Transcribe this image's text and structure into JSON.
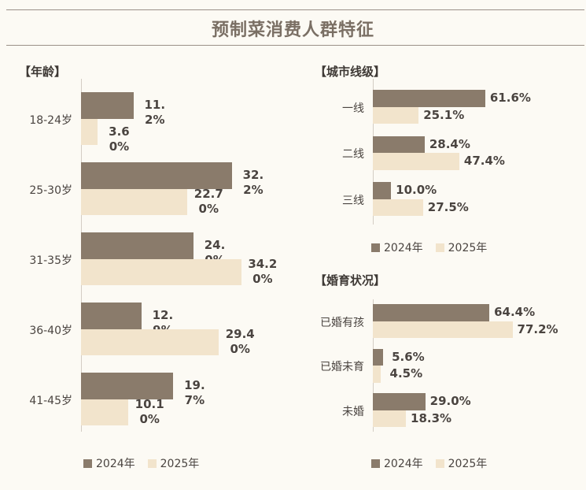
{
  "title": "预制菜消费人群特征",
  "colors": {
    "2024": "#8a7b6b",
    "2025": "#f2e4cc"
  },
  "legend": [
    "2024年",
    "2025年"
  ],
  "chart_data": [
    {
      "type": "bar",
      "orientation": "horizontal",
      "title": "【年龄】",
      "categories": [
        "18-24岁",
        "25-30岁",
        "31-35岁",
        "36-40岁",
        "41-45岁"
      ],
      "series": [
        {
          "name": "2024年",
          "values": [
            11.2,
            32.2,
            24.0,
            12.9,
            19.7
          ],
          "labels": [
            "11.2%",
            "32.2%",
            "24.0%",
            "12.9%",
            "19.7%"
          ]
        },
        {
          "name": "2025年",
          "values": [
            3.6,
            22.7,
            34.2,
            29.4,
            10.1
          ],
          "labels": [
            "3.60%",
            "22.70%",
            "34.20%",
            "29.40%",
            "10.10%"
          ]
        }
      ],
      "legend_placement": "bottom-left",
      "grid": false
    },
    {
      "type": "bar",
      "orientation": "horizontal",
      "title": "【城市线级】",
      "categories": [
        "一线",
        "二线",
        "三线"
      ],
      "series": [
        {
          "name": "2024年",
          "values": [
            61.6,
            28.4,
            10.0
          ],
          "labels": [
            "61.6%",
            "28.4%",
            "10.0%"
          ]
        },
        {
          "name": "2025年",
          "values": [
            25.1,
            47.4,
            27.5
          ],
          "labels": [
            "25.1%",
            "47.4%",
            "27.5%"
          ]
        }
      ],
      "legend_placement": "bottom-left",
      "grid": false
    },
    {
      "type": "bar",
      "orientation": "horizontal",
      "title": "【婚育状况】",
      "categories": [
        "已婚有孩",
        "已婚未育",
        "未婚"
      ],
      "series": [
        {
          "name": "2024年",
          "values": [
            64.4,
            5.6,
            29.0
          ],
          "labels": [
            "64.4%",
            "5.6%",
            "29.0%"
          ]
        },
        {
          "name": "2025年",
          "values": [
            77.2,
            4.5,
            18.3
          ],
          "labels": [
            "77.2%",
            "4.5%",
            "18.3%"
          ]
        }
      ],
      "legend_placement": "bottom-left",
      "grid": false
    }
  ]
}
